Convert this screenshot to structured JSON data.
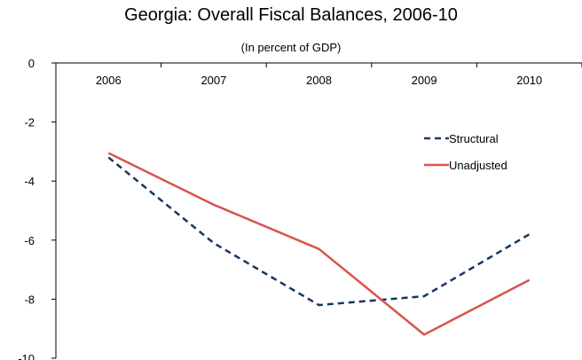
{
  "chart_data": {
    "type": "line",
    "title": "Georgia: Overall Fiscal Balances, 2006-10",
    "subtitle": "(In percent of GDP)",
    "categories": [
      "2006",
      "2007",
      "2008",
      "2009",
      "2010"
    ],
    "ylim": [
      -10,
      0
    ],
    "yticks": [
      0,
      -2,
      -4,
      -6,
      -8,
      -10
    ],
    "ytick_labels": [
      "0",
      "-2",
      "-4",
      "-6",
      "-8",
      "-10"
    ],
    "x_axis_position": "top",
    "grid": false,
    "legend_position": "right-upper",
    "series": [
      {
        "name": "Structural",
        "values": [
          -3.2,
          -6.1,
          -8.2,
          -7.9,
          -5.8
        ],
        "color": "#17375e",
        "dash": "dashed"
      },
      {
        "name": "Unadjusted",
        "values": [
          -3.05,
          -4.8,
          -6.3,
          -9.2,
          -7.35
        ],
        "color": "#d9534f",
        "dash": "solid"
      }
    ]
  }
}
